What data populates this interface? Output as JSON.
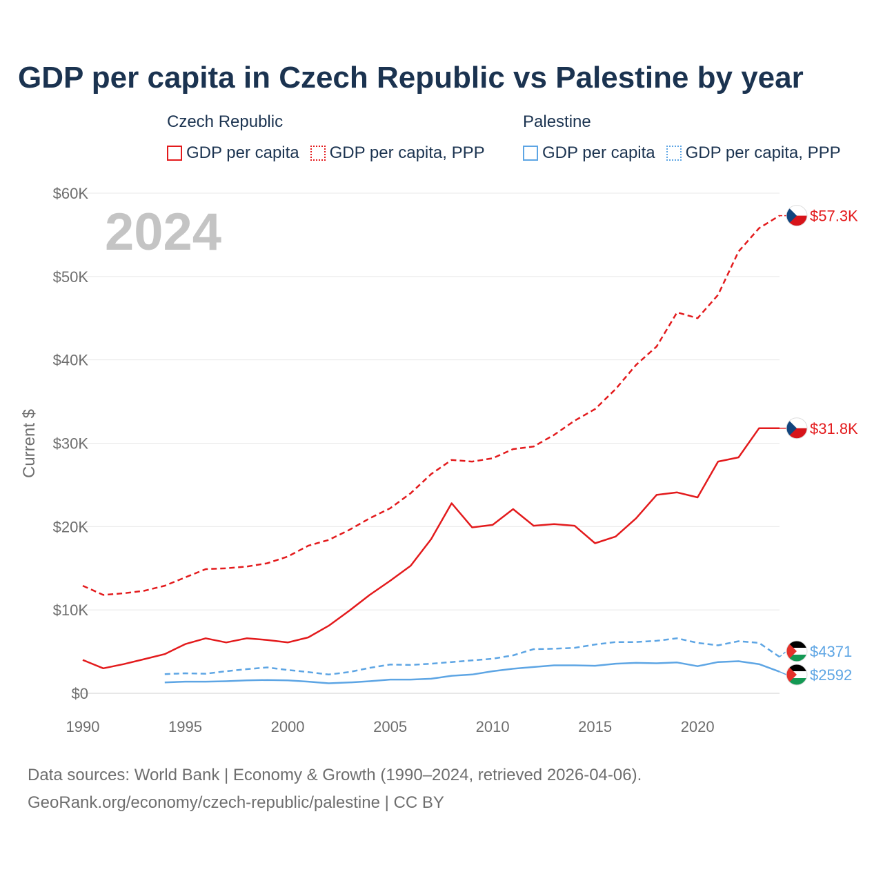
{
  "title": "GDP per capita in Czech Republic vs Palestine by year",
  "year_label": "2024",
  "legend": {
    "groups": [
      {
        "country": "Czech Republic",
        "color": "#e31a1c",
        "items": [
          {
            "label": "GDP per capita",
            "style": "solid"
          },
          {
            "label": "GDP per capita, PPP",
            "style": "dotted"
          }
        ]
      },
      {
        "country": "Palestine",
        "color": "#5da5e4",
        "items": [
          {
            "label": "GDP per capita",
            "style": "solid"
          },
          {
            "label": "GDP per capita, PPP",
            "style": "dotted"
          }
        ]
      }
    ]
  },
  "footer": {
    "line1": "Data sources: World Bank | Economy & Growth (1990–2024, retrieved 2026-04-06).",
    "line2": "GeoRank.org/economy/czech-republic/palestine | CC BY"
  },
  "chart_data": {
    "type": "line",
    "title": "GDP per capita in Czech Republic vs Palestine by year",
    "xlabel": "",
    "ylabel": "Current $",
    "xlim": [
      1990,
      2024
    ],
    "ylim": [
      0,
      60000
    ],
    "x_ticks": [
      1990,
      1995,
      2000,
      2005,
      2010,
      2015,
      2020
    ],
    "x_tick_labels": [
      "1990",
      "1995",
      "2000",
      "2005",
      "2010",
      "2015",
      "2020"
    ],
    "y_ticks": [
      0,
      10000,
      20000,
      30000,
      40000,
      50000,
      60000
    ],
    "y_tick_labels": [
      "$0",
      "$10K",
      "$20K",
      "$30K",
      "$40K",
      "$50K",
      "$60K"
    ],
    "grid": true,
    "series": [
      {
        "name": "Czech Republic GDP per capita, PPP",
        "country": "Czech Republic",
        "color": "#e31a1c",
        "dash": "dashed",
        "end_label": "$57.3K",
        "flag": "czech",
        "x": [
          1990,
          1991,
          1992,
          1993,
          1994,
          1995,
          1996,
          1997,
          1998,
          1999,
          2000,
          2001,
          2002,
          2003,
          2004,
          2005,
          2006,
          2007,
          2008,
          2009,
          2010,
          2011,
          2012,
          2013,
          2014,
          2015,
          2016,
          2017,
          2018,
          2019,
          2020,
          2021,
          2022,
          2023,
          2024
        ],
        "values": [
          12900,
          11800,
          12000,
          12300,
          12900,
          13900,
          14900,
          15000,
          15200,
          15600,
          16400,
          17700,
          18400,
          19600,
          21000,
          22200,
          24000,
          26300,
          28000,
          27800,
          28200,
          29300,
          29600,
          31000,
          32700,
          34100,
          36500,
          39400,
          41600,
          45700,
          45000,
          47800,
          53000,
          55800,
          57300
        ]
      },
      {
        "name": "Czech Republic GDP per capita",
        "country": "Czech Republic",
        "color": "#e31a1c",
        "dash": "solid",
        "end_label": "$31.8K",
        "flag": "czech",
        "x": [
          1990,
          1991,
          1992,
          1993,
          1994,
          1995,
          1996,
          1997,
          1998,
          1999,
          2000,
          2001,
          2002,
          2003,
          2004,
          2005,
          2006,
          2007,
          2008,
          2009,
          2010,
          2011,
          2012,
          2013,
          2014,
          2015,
          2016,
          2017,
          2018,
          2019,
          2020,
          2021,
          2022,
          2023,
          2024
        ],
        "values": [
          4000,
          3000,
          3500,
          4100,
          4700,
          5900,
          6600,
          6100,
          6600,
          6400,
          6100,
          6700,
          8100,
          9900,
          11800,
          13500,
          15300,
          18500,
          22800,
          19900,
          20200,
          22100,
          20100,
          20300,
          20100,
          18000,
          18800,
          21000,
          23800,
          24100,
          23500,
          27800,
          28300,
          31800,
          31800
        ]
      },
      {
        "name": "Palestine GDP per capita, PPP",
        "country": "Palestine",
        "color": "#5da5e4",
        "dash": "dashed",
        "end_label": "$4371",
        "flag": "palestine",
        "x": [
          1994,
          1995,
          1996,
          1997,
          1998,
          1999,
          2000,
          2001,
          2002,
          2003,
          2004,
          2005,
          2006,
          2007,
          2008,
          2009,
          2010,
          2011,
          2012,
          2013,
          2014,
          2015,
          2016,
          2017,
          2018,
          2019,
          2020,
          2021,
          2022,
          2023,
          2024
        ],
        "values": [
          2300,
          2400,
          2350,
          2650,
          2900,
          3100,
          2800,
          2550,
          2250,
          2550,
          3050,
          3450,
          3400,
          3550,
          3750,
          3950,
          4150,
          4550,
          5300,
          5350,
          5450,
          5850,
          6150,
          6150,
          6300,
          6600,
          6050,
          5750,
          6250,
          6050,
          4371
        ]
      },
      {
        "name": "Palestine GDP per capita",
        "country": "Palestine",
        "color": "#5da5e4",
        "dash": "solid",
        "end_label": "$2592",
        "flag": "palestine",
        "x": [
          1994,
          1995,
          1996,
          1997,
          1998,
          1999,
          2000,
          2001,
          2002,
          2003,
          2004,
          2005,
          2006,
          2007,
          2008,
          2009,
          2010,
          2011,
          2012,
          2013,
          2014,
          2015,
          2016,
          2017,
          2018,
          2019,
          2020,
          2021,
          2022,
          2023,
          2024
        ],
        "values": [
          1300,
          1400,
          1400,
          1450,
          1550,
          1600,
          1550,
          1400,
          1200,
          1300,
          1450,
          1650,
          1650,
          1750,
          2100,
          2250,
          2650,
          2950,
          3150,
          3350,
          3350,
          3300,
          3550,
          3650,
          3600,
          3700,
          3250,
          3750,
          3850,
          3500,
          2592
        ]
      }
    ]
  }
}
